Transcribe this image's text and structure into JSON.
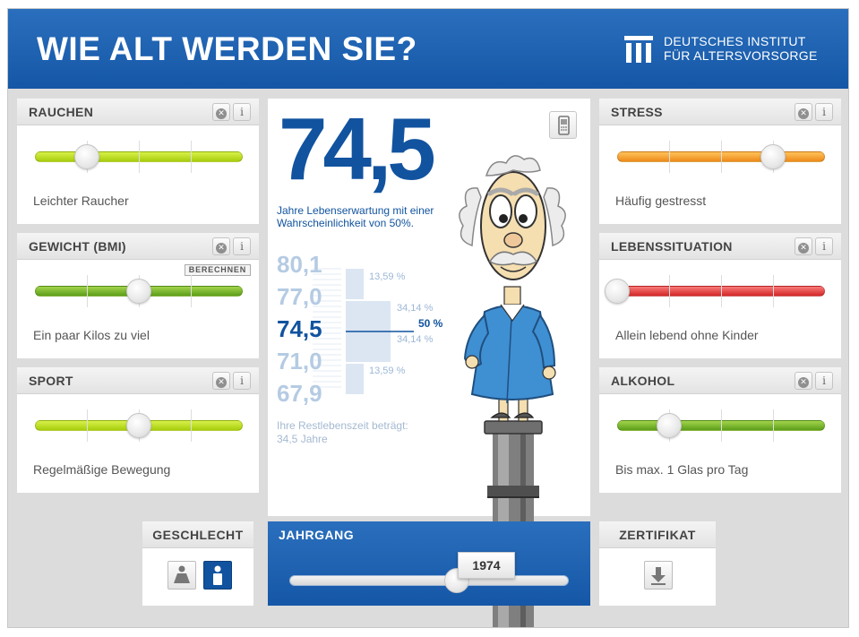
{
  "header": {
    "title": "WIE ALT WERDEN SIE?",
    "logo_line1": "DEUTSCHES INSTITUT",
    "logo_line2": "FÜR ALTERSVORSORGE"
  },
  "icons": {
    "reset": "reset-x-icon",
    "info": "info-icon",
    "info_glyph": "i",
    "reset_glyph": "✕"
  },
  "panels": {
    "rauchen": {
      "title": "RAUCHEN",
      "label": "Leichter Raucher",
      "value": 0.25,
      "color": "lime"
    },
    "gewicht": {
      "title": "GEWICHT (BMI)",
      "label": "Ein paar Kilos zu viel",
      "value": 0.5,
      "color": "green",
      "calc_label": "BERECHNEN"
    },
    "sport": {
      "title": "SPORT",
      "label": "Regelmäßige Bewegung",
      "value": 0.5,
      "color": "lime"
    },
    "stress": {
      "title": "STRESS",
      "label": "Häufig gestresst",
      "value": 0.75,
      "color": "orange"
    },
    "lebenssituation": {
      "title": "LEBENSSITUATION",
      "label": "Allein lebend ohne Kinder",
      "value": 0.0,
      "color": "red"
    },
    "alkohol": {
      "title": "ALKOHOL",
      "label": "Bis max. 1 Glas pro Tag",
      "value": 0.25,
      "color": "green"
    }
  },
  "result": {
    "big_number": "74,5",
    "subtitle": "Jahre Lebenserwartung mit einer Wahrscheinlichkeit von 50%.",
    "distribution": [
      {
        "value": "80,1",
        "pct": "13,59 %"
      },
      {
        "value": "77,0",
        "pct": "34,14 %"
      },
      {
        "value": "74,5",
        "pct": "50 %"
      },
      {
        "value": "71,0",
        "pct": "34,14 %"
      },
      {
        "value": "67,9",
        "pct": "13,59 %"
      }
    ],
    "rest_text": "Ihre Restlebenszeit beträgt: 34,5 Jahre"
  },
  "geschlecht": {
    "title": "GESCHLECHT",
    "selected": "male"
  },
  "jahrgang": {
    "title": "JAHRGANG",
    "year": "1974",
    "value": 0.6
  },
  "zertifikat": {
    "title": "ZERTIFIKAT"
  },
  "colors": {
    "brand": "#1557a6",
    "accent": "#11539f"
  }
}
